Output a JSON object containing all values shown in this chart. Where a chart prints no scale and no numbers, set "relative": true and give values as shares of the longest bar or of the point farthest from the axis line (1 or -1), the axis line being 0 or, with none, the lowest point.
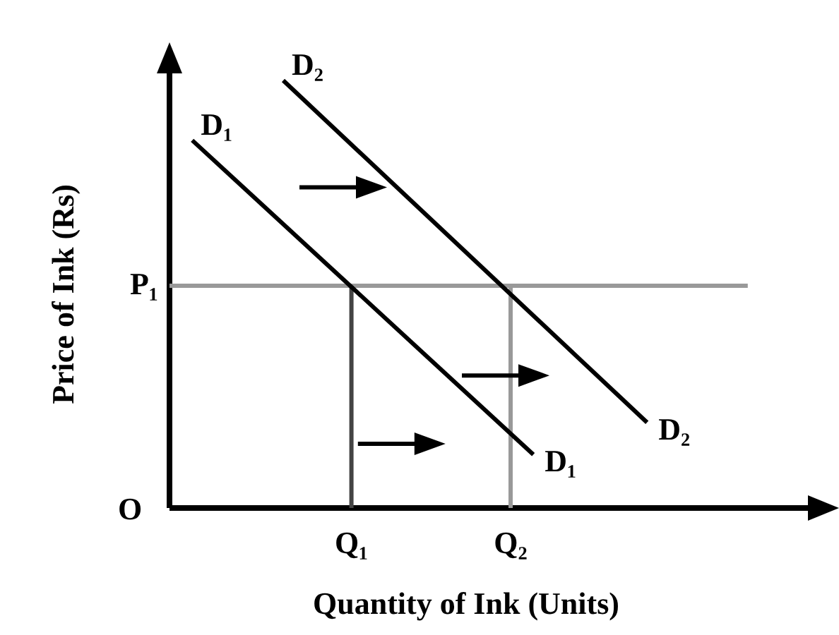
{
  "chart_data": {
    "type": "line",
    "relative": true,
    "xlabel": "Quantity of Ink (Units)",
    "ylabel": "Price of Ink (Rs)",
    "categories": [
      null,
      null,
      null,
      null,
      null,
      null,
      null,
      null,
      "Q₁",
      null,
      null,
      null,
      null,
      null,
      null,
      "Q₂",
      null,
      null,
      null,
      null,
      null,
      null,
      null,
      null,
      null,
      null,
      null,
      null,
      null
    ],
    "series": [
      {
        "name": "D₁",
        "color": "#000000",
        "values": [
          null,
          0.86,
          null,
          null,
          null,
          null,
          null,
          null,
          null,
          null,
          null,
          null,
          null,
          null,
          null,
          null,
          0.125,
          null,
          null,
          null,
          null,
          null,
          null,
          null,
          null,
          null,
          null,
          null,
          null
        ]
      },
      {
        "name": "D₂",
        "color": "#000000",
        "values": [
          null,
          null,
          null,
          null,
          null,
          1,
          null,
          null,
          null,
          null,
          null,
          null,
          null,
          null,
          null,
          null,
          null,
          null,
          null,
          null,
          null,
          0.2,
          null,
          null,
          null,
          null,
          null,
          null,
          null
        ]
      }
    ],
    "ref_lines": [
      {
        "axis": "y",
        "value": 0.52,
        "label": "P₁",
        "color": "#999999"
      },
      {
        "axis": "x",
        "value": "Q₁",
        "color": "#444444"
      },
      {
        "axis": "x",
        "value": "Q₂",
        "color": "#999999"
      }
    ],
    "annotations": [
      "O"
    ]
  }
}
